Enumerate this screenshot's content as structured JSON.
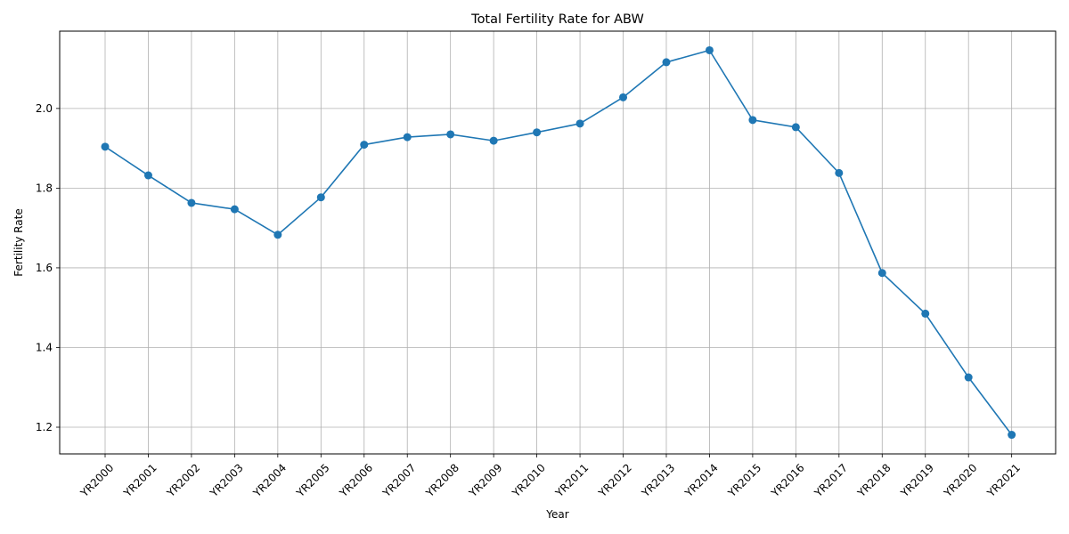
{
  "chart_data": {
    "type": "line",
    "title": "Total Fertility Rate for ABW",
    "xlabel": "Year",
    "ylabel": "Fertility Rate",
    "categories": [
      "YR2000",
      "YR2001",
      "YR2002",
      "YR2003",
      "YR2004",
      "YR2005",
      "YR2006",
      "YR2007",
      "YR2008",
      "YR2009",
      "YR2010",
      "YR2011",
      "YR2012",
      "YR2013",
      "YR2014",
      "YR2015",
      "YR2016",
      "YR2017",
      "YR2018",
      "YR2019",
      "YR2020",
      "YR2021"
    ],
    "series": [
      {
        "values": [
          1.904,
          1.832,
          1.763,
          1.747,
          1.683,
          1.777,
          1.909,
          1.928,
          1.935,
          1.919,
          1.94,
          1.962,
          2.028,
          2.116,
          2.146,
          1.971,
          1.953,
          1.838,
          1.587,
          1.485,
          1.325,
          1.181
        ],
        "color": "#1f77b4",
        "marker": "circle"
      }
    ],
    "yticks": [
      1.2,
      1.4,
      1.6,
      1.8,
      2.0
    ],
    "ytick_labels": [
      "1.2",
      "1.4",
      "1.6",
      "1.8",
      "2.0"
    ],
    "ylim": [
      1.133,
      2.194
    ],
    "grid": true,
    "xtick_rotation": 45
  }
}
